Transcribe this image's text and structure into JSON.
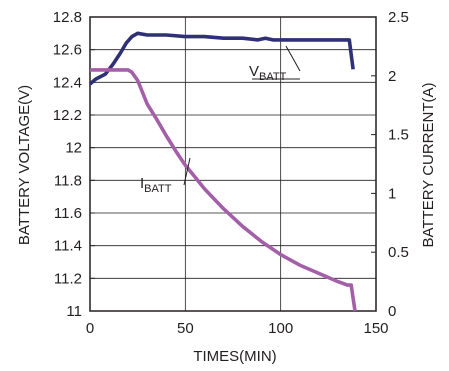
{
  "chart_data": {
    "type": "line",
    "xlabel": "TIMES(MIN)",
    "ylabel_left": "BATTERY VOLTAGE(V)",
    "ylabel_right": "BATTERY CURRENT(A)",
    "xlim": [
      0,
      150
    ],
    "ylim_left": [
      11,
      12.8
    ],
    "ylim_right": [
      0,
      2.5
    ],
    "x_ticks": [
      "0",
      "50",
      "100",
      "150"
    ],
    "y_left_ticks": [
      "11",
      "11.2",
      "11.4",
      "11.6",
      "11.8",
      "12",
      "12.2",
      "12.4",
      "12.6",
      "12.8"
    ],
    "y_right_ticks": [
      "0",
      "0.5",
      "1",
      "1.5",
      "2",
      "2.5"
    ],
    "grid": true,
    "series": [
      {
        "name": "V",
        "name_sub": "BATT",
        "axis": "left",
        "color": "#2e3175",
        "x": [
          0,
          3,
          8,
          12,
          16,
          19,
          22,
          25,
          30,
          40,
          50,
          60,
          70,
          80,
          88,
          92,
          96,
          100,
          110,
          120,
          125,
          130,
          134,
          136,
          138
        ],
        "y": [
          12.39,
          12.42,
          12.45,
          12.51,
          12.58,
          12.64,
          12.68,
          12.7,
          12.69,
          12.69,
          12.68,
          12.68,
          12.67,
          12.67,
          12.66,
          12.67,
          12.66,
          12.66,
          12.66,
          12.66,
          12.66,
          12.66,
          12.66,
          12.66,
          12.48
        ]
      },
      {
        "name": "I",
        "name_sub": "BATT",
        "axis": "right",
        "color": "#a35fa8",
        "x": [
          0,
          5,
          10,
          15,
          20,
          22,
          25,
          30,
          35,
          40,
          45,
          50,
          55,
          60,
          70,
          80,
          90,
          100,
          110,
          120,
          130,
          135,
          137,
          139
        ],
        "y": [
          2.05,
          2.05,
          2.05,
          2.05,
          2.05,
          2.03,
          1.96,
          1.76,
          1.63,
          1.49,
          1.36,
          1.24,
          1.14,
          1.04,
          0.87,
          0.72,
          0.59,
          0.48,
          0.39,
          0.32,
          0.25,
          0.22,
          0.22,
          0.0
        ]
      }
    ]
  }
}
